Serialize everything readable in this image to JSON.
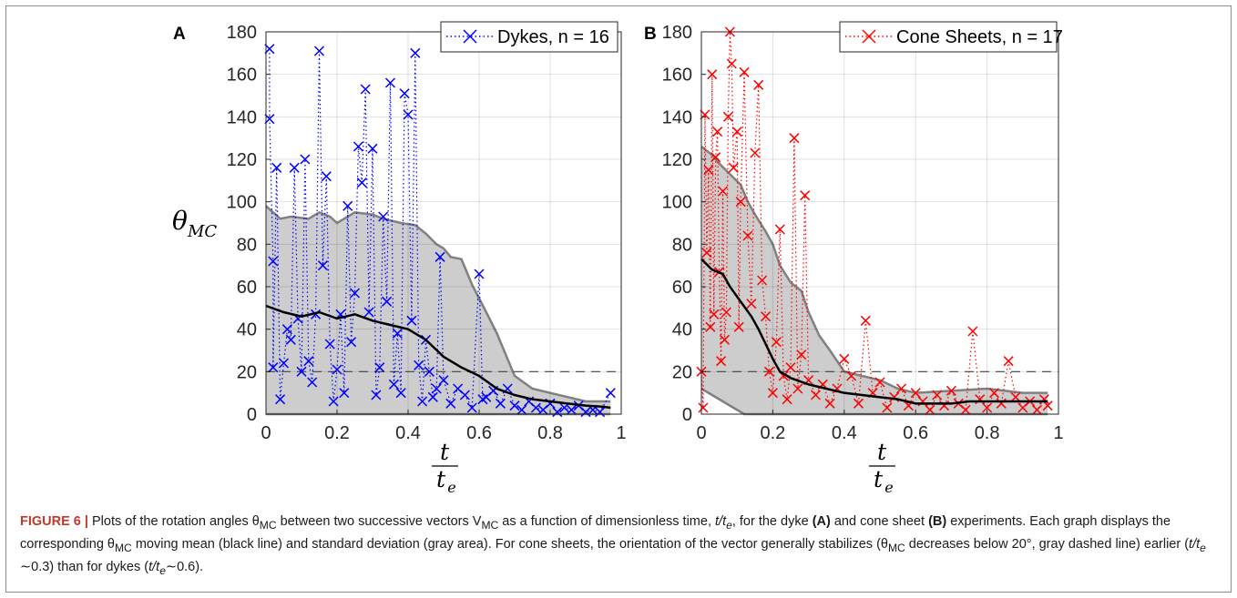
{
  "caption": {
    "label": "FIGURE 6 |",
    "p1": " Plots of the rotation angles θ",
    "sub1": "MC",
    "p2": " between two successive vectors V",
    "sub2": "MC",
    "p3": " as a function of dimensionless time, ",
    "t1": "t/t",
    "e1": "e",
    "p4": ", for the dyke ",
    "refA": "(A)",
    "p5": " and cone sheet ",
    "refB": "(B)",
    "p6": " experiments. Each graph displays the corresponding θ",
    "sub3": "MC",
    "p7": " moving mean (black line) and standard deviation (gray area). For cone sheets, the orientation of the vector generally stabilizes (θ",
    "sub4": "MC",
    "p8": " decreases below 20°, gray dashed line) earlier (",
    "t2": "t/t",
    "e2": "e",
    "p9": " ∼0.3) than for dykes (",
    "t3": "t/t",
    "e3": "e",
    "p10": "∼0.6)."
  },
  "ylabel": {
    "theta": "θ",
    "sub": "MC"
  },
  "xlabel": {
    "num": "t",
    "den": "t",
    "den_sub": "e"
  },
  "colors": {
    "dykes": "#0000ff",
    "cone": "#ff0000",
    "mean": "#000000",
    "std_fill": "#cdcdcd",
    "std_edge": "#808080",
    "threshold": "#444444"
  },
  "chart_data": [
    {
      "type": "scatter",
      "panel": "A",
      "legend": "Dykes, n = 16",
      "legend_position": "top-right",
      "xlim": [
        0,
        1
      ],
      "ylim": [
        0,
        180
      ],
      "xticks": [
        "0",
        "0.2",
        "0.4",
        "0.6",
        "0.8",
        "1"
      ],
      "yticks": [
        "0",
        "20",
        "40",
        "60",
        "80",
        "100",
        "120",
        "140",
        "160",
        "180"
      ],
      "grid": true,
      "threshold": 20,
      "mean": [
        [
          0,
          51
        ],
        [
          0.05,
          48
        ],
        [
          0.1,
          46
        ],
        [
          0.15,
          48
        ],
        [
          0.2,
          45
        ],
        [
          0.25,
          47
        ],
        [
          0.3,
          44
        ],
        [
          0.35,
          42
        ],
        [
          0.4,
          40
        ],
        [
          0.45,
          35
        ],
        [
          0.5,
          27
        ],
        [
          0.55,
          22
        ],
        [
          0.6,
          18
        ],
        [
          0.65,
          12
        ],
        [
          0.7,
          9
        ],
        [
          0.75,
          7
        ],
        [
          0.8,
          6
        ],
        [
          0.85,
          5
        ],
        [
          0.9,
          4
        ],
        [
          0.95,
          3.5
        ],
        [
          0.97,
          3
        ]
      ],
      "std_upper": [
        [
          0,
          98
        ],
        [
          0.04,
          92
        ],
        [
          0.07,
          93
        ],
        [
          0.12,
          92
        ],
        [
          0.15,
          95
        ],
        [
          0.18,
          93
        ],
        [
          0.2,
          90
        ],
        [
          0.25,
          95
        ],
        [
          0.3,
          94
        ],
        [
          0.33,
          92
        ],
        [
          0.38,
          90
        ],
        [
          0.42,
          89
        ],
        [
          0.45,
          85
        ],
        [
          0.48,
          80
        ],
        [
          0.5,
          78
        ],
        [
          0.52,
          74
        ],
        [
          0.55,
          73
        ],
        [
          0.58,
          61
        ],
        [
          0.62,
          48
        ],
        [
          0.65,
          38
        ],
        [
          0.68,
          26
        ],
        [
          0.7,
          18
        ],
        [
          0.75,
          12
        ],
        [
          0.8,
          10
        ],
        [
          0.85,
          8
        ],
        [
          0.9,
          6
        ],
        [
          0.97,
          6
        ]
      ],
      "std_lower": [
        [
          0,
          0
        ],
        [
          0.97,
          0
        ]
      ],
      "points": [
        [
          0.01,
          172
        ],
        [
          0.01,
          139
        ],
        [
          0.02,
          72
        ],
        [
          0.02,
          22
        ],
        [
          0.03,
          116
        ],
        [
          0.04,
          7
        ],
        [
          0.05,
          24
        ],
        [
          0.06,
          40
        ],
        [
          0.07,
          35
        ],
        [
          0.08,
          116
        ],
        [
          0.09,
          45
        ],
        [
          0.1,
          20
        ],
        [
          0.11,
          120
        ],
        [
          0.12,
          25
        ],
        [
          0.13,
          15
        ],
        [
          0.14,
          47
        ],
        [
          0.15,
          171
        ],
        [
          0.16,
          70
        ],
        [
          0.17,
          112
        ],
        [
          0.18,
          33
        ],
        [
          0.19,
          6
        ],
        [
          0.2,
          21
        ],
        [
          0.21,
          47
        ],
        [
          0.22,
          10
        ],
        [
          0.23,
          98
        ],
        [
          0.24,
          34
        ],
        [
          0.25,
          57
        ],
        [
          0.26,
          126
        ],
        [
          0.27,
          109
        ],
        [
          0.28,
          153
        ],
        [
          0.29,
          48
        ],
        [
          0.3,
          125
        ],
        [
          0.31,
          9
        ],
        [
          0.32,
          22
        ],
        [
          0.33,
          93
        ],
        [
          0.34,
          53
        ],
        [
          0.35,
          156
        ],
        [
          0.36,
          14
        ],
        [
          0.37,
          38
        ],
        [
          0.38,
          10
        ],
        [
          0.39,
          151
        ],
        [
          0.4,
          141
        ],
        [
          0.41,
          44
        ],
        [
          0.42,
          170
        ],
        [
          0.43,
          23
        ],
        [
          0.44,
          6
        ],
        [
          0.45,
          35
        ],
        [
          0.46,
          20
        ],
        [
          0.47,
          8
        ],
        [
          0.48,
          12
        ],
        [
          0.49,
          74
        ],
        [
          0.5,
          16
        ],
        [
          0.52,
          5
        ],
        [
          0.54,
          12
        ],
        [
          0.56,
          9
        ],
        [
          0.58,
          3
        ],
        [
          0.6,
          66
        ],
        [
          0.61,
          7
        ],
        [
          0.62,
          8
        ],
        [
          0.64,
          11
        ],
        [
          0.66,
          5
        ],
        [
          0.68,
          12
        ],
        [
          0.7,
          4
        ],
        [
          0.72,
          2
        ],
        [
          0.74,
          6
        ],
        [
          0.76,
          3
        ],
        [
          0.78,
          2
        ],
        [
          0.8,
          5
        ],
        [
          0.82,
          1
        ],
        [
          0.84,
          3
        ],
        [
          0.86,
          2
        ],
        [
          0.88,
          4
        ],
        [
          0.9,
          1
        ],
        [
          0.92,
          2
        ],
        [
          0.94,
          1
        ],
        [
          0.97,
          10
        ]
      ]
    },
    {
      "type": "scatter",
      "panel": "B",
      "legend": "Cone Sheets, n = 17",
      "legend_position": "top-right",
      "xlim": [
        0,
        1
      ],
      "ylim": [
        0,
        180
      ],
      "xticks": [
        "0",
        "0.2",
        "0.4",
        "0.6",
        "0.8",
        "1"
      ],
      "yticks": [
        "0",
        "20",
        "40",
        "60",
        "80",
        "100",
        "120",
        "140",
        "160",
        "180"
      ],
      "grid": true,
      "threshold": 20,
      "mean": [
        [
          0,
          73
        ],
        [
          0.03,
          68
        ],
        [
          0.06,
          66
        ],
        [
          0.08,
          60
        ],
        [
          0.11,
          53
        ],
        [
          0.14,
          46
        ],
        [
          0.16,
          40
        ],
        [
          0.18,
          33
        ],
        [
          0.2,
          26
        ],
        [
          0.22,
          20
        ],
        [
          0.25,
          17
        ],
        [
          0.3,
          14
        ],
        [
          0.35,
          12
        ],
        [
          0.4,
          10
        ],
        [
          0.45,
          9
        ],
        [
          0.5,
          8
        ],
        [
          0.55,
          7
        ],
        [
          0.6,
          5
        ],
        [
          0.7,
          5
        ],
        [
          0.75,
          6
        ],
        [
          0.8,
          6
        ],
        [
          0.9,
          6
        ],
        [
          0.97,
          6
        ]
      ],
      "std_upper": [
        [
          0,
          126
        ],
        [
          0.03,
          122
        ],
        [
          0.05,
          118
        ],
        [
          0.08,
          113
        ],
        [
          0.11,
          108
        ],
        [
          0.13,
          100
        ],
        [
          0.15,
          94
        ],
        [
          0.18,
          86
        ],
        [
          0.2,
          80
        ],
        [
          0.22,
          70
        ],
        [
          0.25,
          62
        ],
        [
          0.28,
          58
        ],
        [
          0.3,
          48
        ],
        [
          0.33,
          37
        ],
        [
          0.36,
          30
        ],
        [
          0.4,
          20
        ],
        [
          0.45,
          18
        ],
        [
          0.5,
          16
        ],
        [
          0.55,
          12
        ],
        [
          0.6,
          10
        ],
        [
          0.7,
          11
        ],
        [
          0.8,
          12
        ],
        [
          0.9,
          10
        ],
        [
          0.97,
          10
        ]
      ],
      "std_lower": [
        [
          0,
          12
        ],
        [
          0.03,
          9
        ],
        [
          0.06,
          6
        ],
        [
          0.09,
          3
        ],
        [
          0.12,
          0
        ],
        [
          0.97,
          0
        ]
      ],
      "points": [
        [
          0,
          20
        ],
        [
          0.005,
          3
        ],
        [
          0.01,
          141
        ],
        [
          0.015,
          76
        ],
        [
          0.02,
          115
        ],
        [
          0.025,
          41
        ],
        [
          0.03,
          160
        ],
        [
          0.035,
          47
        ],
        [
          0.04,
          121
        ],
        [
          0.045,
          133
        ],
        [
          0.05,
          67
        ],
        [
          0.055,
          25
        ],
        [
          0.06,
          105
        ],
        [
          0.065,
          35
        ],
        [
          0.07,
          48
        ],
        [
          0.075,
          140
        ],
        [
          0.08,
          180
        ],
        [
          0.085,
          165
        ],
        [
          0.09,
          116
        ],
        [
          0.1,
          133
        ],
        [
          0.105,
          41
        ],
        [
          0.11,
          100
        ],
        [
          0.12,
          161
        ],
        [
          0.13,
          84
        ],
        [
          0.14,
          52
        ],
        [
          0.15,
          123
        ],
        [
          0.16,
          155
        ],
        [
          0.17,
          63
        ],
        [
          0.18,
          46
        ],
        [
          0.19,
          20
        ],
        [
          0.2,
          10
        ],
        [
          0.21,
          34
        ],
        [
          0.22,
          87
        ],
        [
          0.23,
          18
        ],
        [
          0.24,
          7
        ],
        [
          0.25,
          22
        ],
        [
          0.26,
          130
        ],
        [
          0.27,
          12
        ],
        [
          0.28,
          28
        ],
        [
          0.29,
          103
        ],
        [
          0.3,
          16
        ],
        [
          0.32,
          9
        ],
        [
          0.34,
          14
        ],
        [
          0.36,
          5
        ],
        [
          0.38,
          12
        ],
        [
          0.4,
          26
        ],
        [
          0.42,
          18
        ],
        [
          0.44,
          5
        ],
        [
          0.46,
          44
        ],
        [
          0.48,
          10
        ],
        [
          0.5,
          15
        ],
        [
          0.52,
          3
        ],
        [
          0.54,
          8
        ],
        [
          0.56,
          12
        ],
        [
          0.58,
          4
        ],
        [
          0.6,
          10
        ],
        [
          0.62,
          6
        ],
        [
          0.64,
          2
        ],
        [
          0.66,
          9
        ],
        [
          0.68,
          4
        ],
        [
          0.7,
          11
        ],
        [
          0.72,
          5
        ],
        [
          0.74,
          2
        ],
        [
          0.76,
          39
        ],
        [
          0.78,
          7
        ],
        [
          0.8,
          3
        ],
        [
          0.82,
          10
        ],
        [
          0.84,
          5
        ],
        [
          0.86,
          25
        ],
        [
          0.88,
          8
        ],
        [
          0.9,
          3
        ],
        [
          0.92,
          6
        ],
        [
          0.94,
          2
        ],
        [
          0.96,
          7
        ],
        [
          0.97,
          4
        ]
      ]
    }
  ]
}
